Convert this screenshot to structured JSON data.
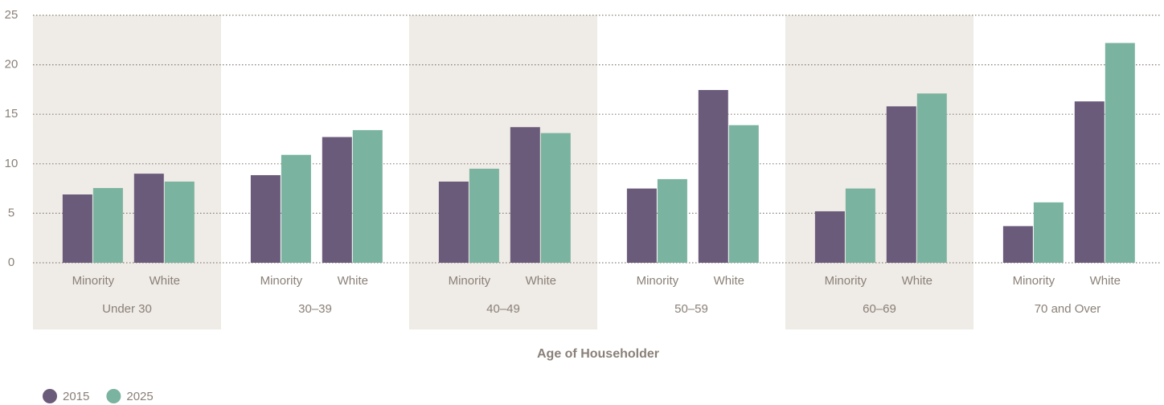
{
  "chart_data": {
    "type": "bar",
    "x_label": "Age of Householder",
    "groups": [
      "Under 30",
      "30–39",
      "40–49",
      "50–59",
      "60–69",
      "70 and Over"
    ],
    "categories": [
      "Minority",
      "White",
      "Minority",
      "White",
      "Minority",
      "White",
      "Minority",
      "White",
      "Minority",
      "White",
      "Minority",
      "White"
    ],
    "series": [
      {
        "name": "2015",
        "color": "#6b5b7b",
        "values": [
          6.9,
          9.0,
          8.85,
          12.7,
          8.2,
          13.7,
          7.5,
          17.45,
          5.2,
          15.8,
          3.7,
          16.3
        ]
      },
      {
        "name": "2025",
        "color": "#7ab39f",
        "values": [
          7.55,
          8.2,
          10.9,
          13.4,
          9.5,
          13.1,
          8.45,
          13.9,
          7.5,
          17.1,
          6.1,
          22.2
        ]
      }
    ],
    "ylim": [
      0,
      25
    ],
    "yticks": [
      0,
      5,
      10,
      15,
      20,
      25
    ],
    "grid": true,
    "legend": "bottom-left"
  }
}
